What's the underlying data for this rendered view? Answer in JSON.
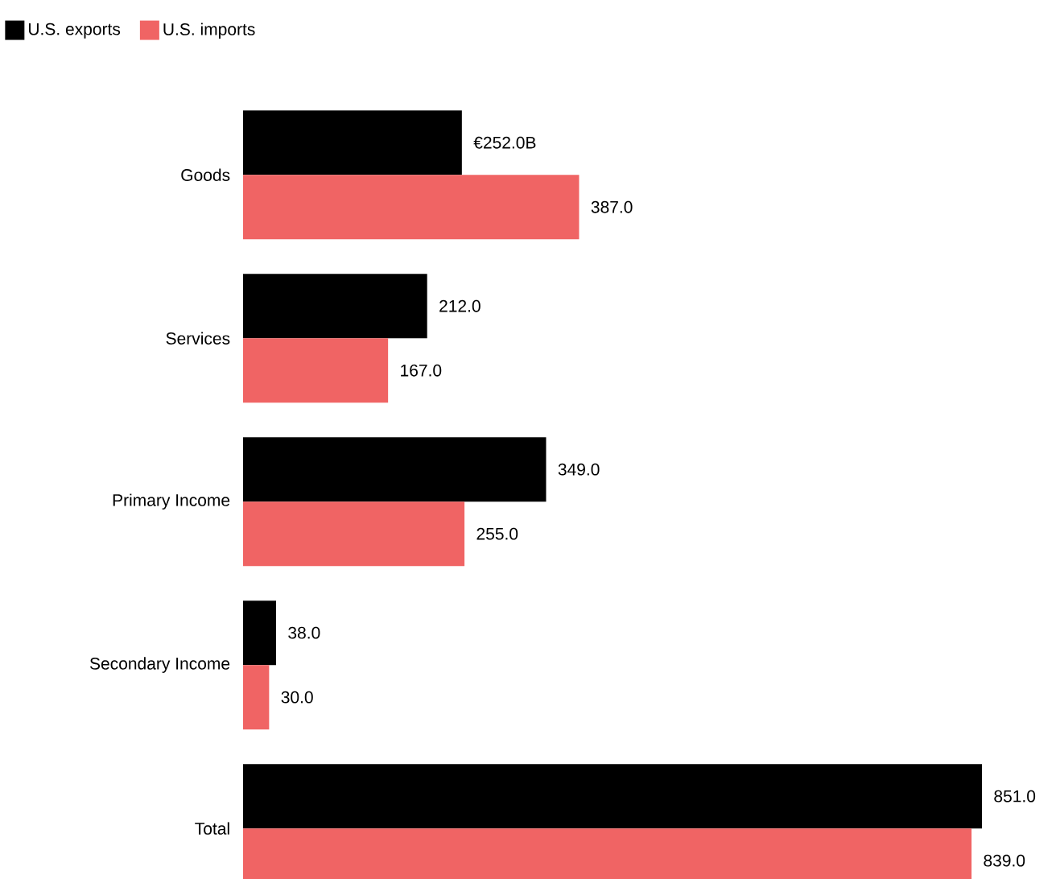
{
  "chart_data": {
    "type": "bar",
    "orientation": "horizontal",
    "legend": "top left",
    "categories": [
      "Goods",
      "Services",
      "Primary Income",
      "Secondary Income",
      "Total"
    ],
    "series": [
      {
        "name": "U.S. exports",
        "color": "#000000",
        "values": [
          252.0,
          212.0,
          349.0,
          38.0,
          851.0
        ],
        "value_labels": [
          "€252.0B",
          "212.0",
          "349.0",
          "38.0",
          "851.0"
        ]
      },
      {
        "name": "U.S. imports",
        "color": "#f06464",
        "values": [
          387.0,
          167.0,
          255.0,
          30.0,
          839.0
        ],
        "value_labels": [
          "387.0",
          "167.0",
          "255.0",
          "30.0",
          "839.0"
        ]
      }
    ]
  }
}
